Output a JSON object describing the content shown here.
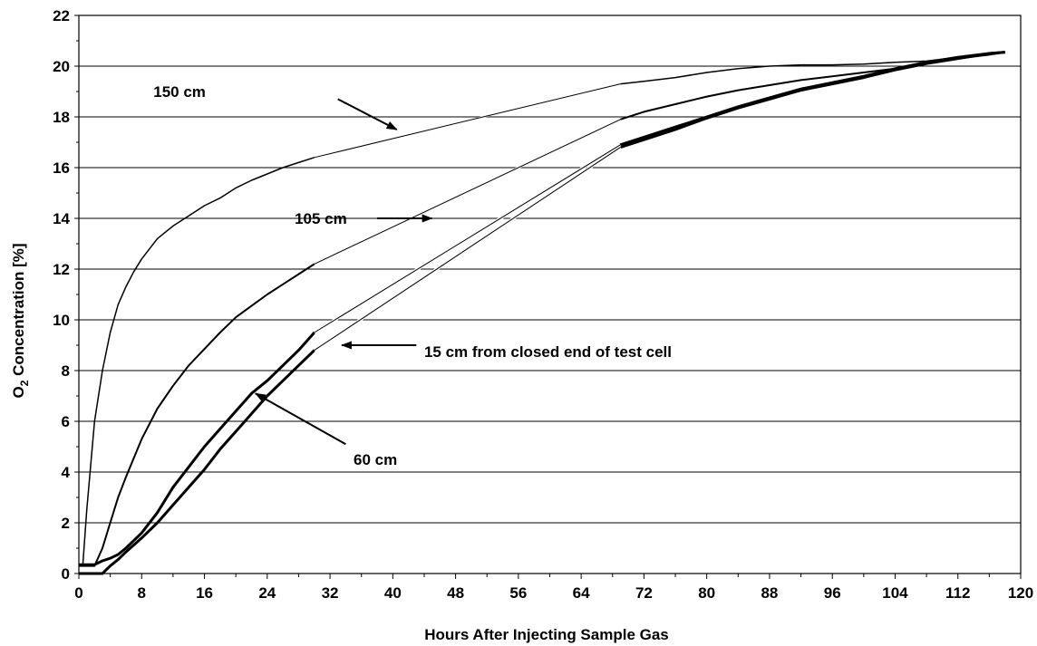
{
  "chart_data": {
    "type": "line",
    "title": "",
    "xlabel": "Hours After Injecting Sample Gas",
    "ylabel_main": "O",
    "ylabel_sub": "2",
    "ylabel_rest": " Concentration [%]",
    "xlim": [
      0,
      120
    ],
    "ylim": [
      0,
      22
    ],
    "xticks": [
      "0",
      "8",
      "16",
      "24",
      "32",
      "40",
      "48",
      "56",
      "64",
      "72",
      "80",
      "88",
      "96",
      "104",
      "112",
      "120"
    ],
    "yticks": [
      "0",
      "2",
      "4",
      "6",
      "8",
      "10",
      "12",
      "14",
      "16",
      "18",
      "20",
      "22"
    ],
    "grid": "horizontal",
    "legend": "none",
    "series": [
      {
        "name": "150 cm",
        "width": 1.5,
        "points": [
          [
            0,
            0.3
          ],
          [
            0.5,
            0.3
          ],
          [
            1,
            2.5
          ],
          [
            2,
            6
          ],
          [
            3,
            8
          ],
          [
            4,
            9.5
          ],
          [
            5,
            10.6
          ],
          [
            6,
            11.3
          ],
          [
            7,
            11.9
          ],
          [
            8,
            12.4
          ],
          [
            10,
            13.2
          ],
          [
            12,
            13.7
          ],
          [
            14,
            14.1
          ],
          [
            16,
            14.5
          ],
          [
            18,
            14.8
          ],
          [
            20,
            15.2
          ],
          [
            22,
            15.5
          ],
          [
            24,
            15.75
          ],
          [
            26,
            16
          ],
          [
            28,
            16.2
          ],
          [
            30,
            16.4
          ],
          [
            69,
            19.3
          ],
          [
            72,
            19.4
          ],
          [
            76,
            19.55
          ],
          [
            80,
            19.75
          ],
          [
            84,
            19.9
          ],
          [
            88,
            20.0
          ],
          [
            92,
            20.05
          ],
          [
            96,
            20.05
          ],
          [
            100,
            20.08
          ],
          [
            104,
            20.15
          ],
          [
            108,
            20.2
          ],
          [
            112,
            20.35
          ],
          [
            116,
            20.45
          ],
          [
            118,
            20.55
          ]
        ]
      },
      {
        "name": "105 cm",
        "width": 2,
        "points": [
          [
            0,
            0.3
          ],
          [
            1,
            0.3
          ],
          [
            2,
            0.3
          ],
          [
            3,
            1
          ],
          [
            4,
            2
          ],
          [
            5,
            3
          ],
          [
            6,
            3.8
          ],
          [
            8,
            5.3
          ],
          [
            10,
            6.5
          ],
          [
            12,
            7.4
          ],
          [
            14,
            8.2
          ],
          [
            16,
            8.85
          ],
          [
            18,
            9.5
          ],
          [
            20,
            10.1
          ],
          [
            22,
            10.55
          ],
          [
            24,
            11
          ],
          [
            26,
            11.4
          ],
          [
            28,
            11.8
          ],
          [
            30,
            12.2
          ],
          [
            69,
            17.9
          ],
          [
            72,
            18.2
          ],
          [
            76,
            18.5
          ],
          [
            80,
            18.8
          ],
          [
            84,
            19.05
          ],
          [
            88,
            19.25
          ],
          [
            92,
            19.45
          ],
          [
            96,
            19.6
          ],
          [
            100,
            19.75
          ],
          [
            104,
            19.9
          ],
          [
            108,
            20.1
          ],
          [
            112,
            20.3
          ],
          [
            116,
            20.45
          ],
          [
            118,
            20.55
          ]
        ]
      },
      {
        "name": "60 cm",
        "width": 3,
        "points": [
          [
            0,
            0.35
          ],
          [
            2,
            0.35
          ],
          [
            3,
            0.5
          ],
          [
            4,
            0.6
          ],
          [
            5,
            0.75
          ],
          [
            6,
            1.0
          ],
          [
            8,
            1.6
          ],
          [
            10,
            2.4
          ],
          [
            12,
            3.4
          ],
          [
            14,
            4.2
          ],
          [
            16,
            5.0
          ],
          [
            18,
            5.7
          ],
          [
            20,
            6.4
          ],
          [
            22,
            7.1
          ],
          [
            24,
            7.6
          ],
          [
            26,
            8.2
          ],
          [
            28,
            8.8
          ],
          [
            30,
            9.5
          ],
          [
            69,
            16.9
          ],
          [
            72,
            17.2
          ],
          [
            76,
            17.6
          ],
          [
            80,
            18.0
          ],
          [
            84,
            18.4
          ],
          [
            88,
            18.75
          ],
          [
            92,
            19.1
          ],
          [
            96,
            19.35
          ],
          [
            100,
            19.6
          ],
          [
            104,
            19.9
          ],
          [
            108,
            20.15
          ],
          [
            112,
            20.35
          ],
          [
            116,
            20.5
          ],
          [
            118,
            20.55
          ]
        ]
      },
      {
        "name": "15 cm from closed end of test cell",
        "width": 3,
        "points": [
          [
            0,
            0
          ],
          [
            3,
            0
          ],
          [
            4,
            0.3
          ],
          [
            5,
            0.55
          ],
          [
            6,
            0.85
          ],
          [
            8,
            1.4
          ],
          [
            10,
            2.0
          ],
          [
            12,
            2.7
          ],
          [
            14,
            3.4
          ],
          [
            16,
            4.1
          ],
          [
            18,
            4.9
          ],
          [
            20,
            5.6
          ],
          [
            22,
            6.3
          ],
          [
            24,
            7.0
          ],
          [
            26,
            7.6
          ],
          [
            28,
            8.2
          ],
          [
            30,
            8.8
          ],
          [
            69,
            16.8
          ],
          [
            72,
            17.1
          ],
          [
            76,
            17.5
          ],
          [
            80,
            17.95
          ],
          [
            84,
            18.35
          ],
          [
            88,
            18.7
          ],
          [
            92,
            19.05
          ],
          [
            96,
            19.3
          ],
          [
            100,
            19.55
          ],
          [
            104,
            19.85
          ],
          [
            108,
            20.1
          ],
          [
            112,
            20.3
          ],
          [
            116,
            20.5
          ],
          [
            118,
            20.55
          ]
        ]
      }
    ],
    "annotations": [
      {
        "text": "150 cm",
        "label_at": [
          9.5,
          19.0
        ],
        "arrow_from": [
          33,
          18.7
        ],
        "arrow_to": [
          40.5,
          17.5
        ]
      },
      {
        "text": "105 cm",
        "label_at": [
          27.5,
          14.0
        ],
        "arrow_from": [
          38,
          14.0
        ],
        "arrow_to": [
          45,
          14.0
        ]
      },
      {
        "text": "15 cm from closed end of test cell",
        "label_at": [
          44,
          8.75
        ],
        "arrow_from": [
          43,
          9.0
        ],
        "arrow_to": [
          33.5,
          9.0
        ]
      },
      {
        "text": "60 cm",
        "label_at": [
          35,
          4.5
        ],
        "arrow_from": [
          34,
          5.1
        ],
        "arrow_to": [
          22.5,
          7.1
        ]
      }
    ]
  }
}
